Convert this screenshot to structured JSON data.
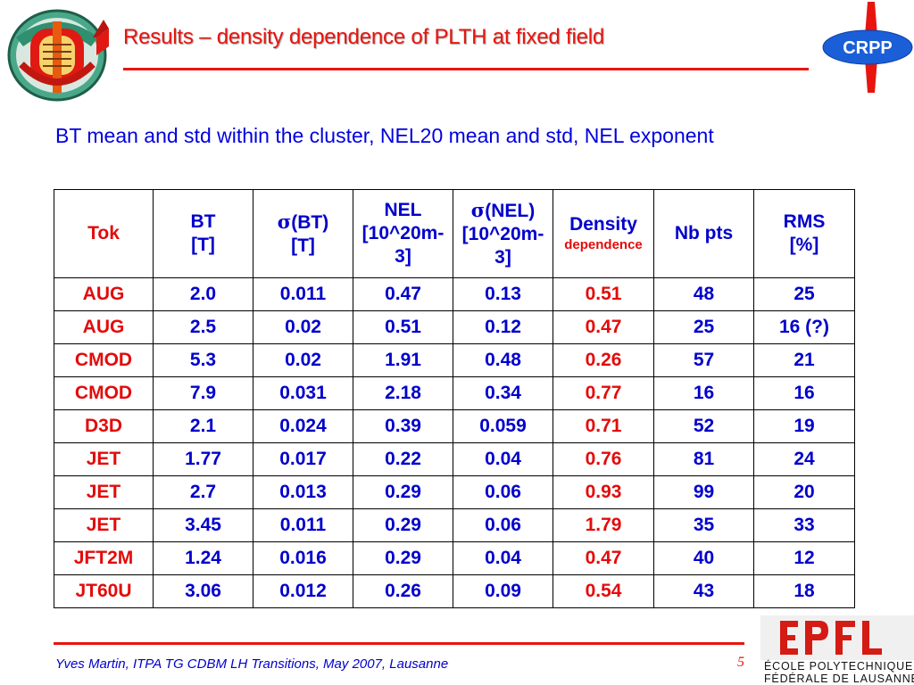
{
  "title": "Results – density dependence of PLTH at fixed field",
  "intro": "BT mean and std within the cluster, NEL20 mean and std, NEL exponent",
  "logo_right_text": "CRPP",
  "epfl": {
    "line1": "ÉCOLE POLYTECHNIQUE",
    "line2": "FÉDÉRALE DE LAUSANNE"
  },
  "table": {
    "headers": {
      "tok": "Tok",
      "bt_1": "BT",
      "bt_2": "[T]",
      "sigma_bt_1": "(BT)",
      "sigma_bt_2": "[T]",
      "nel_1": "NEL",
      "nel_2": "[10^20m-",
      "nel_3": "3]",
      "sigma_nel_1": "(NEL)",
      "sigma_nel_2": "[10^20m-",
      "sigma_nel_3": "3]",
      "density_1": "Density",
      "density_2": "dependence",
      "nbpts": "Nb pts",
      "rms_1": "RMS",
      "rms_2": "[%]",
      "sigma_symbol": "σ"
    },
    "rows": [
      {
        "tok": "AUG",
        "bt": "2.0",
        "sbt": "0.011",
        "nel": "0.47",
        "snel": "0.13",
        "dens": "0.51",
        "nb": "48",
        "rms": "25"
      },
      {
        "tok": "AUG",
        "bt": "2.5",
        "sbt": "0.02",
        "nel": "0.51",
        "snel": "0.12",
        "dens": "0.47",
        "nb": "25",
        "rms": "16 (?)"
      },
      {
        "tok": "CMOD",
        "bt": "5.3",
        "sbt": "0.02",
        "nel": "1.91",
        "snel": "0.48",
        "dens": "0.26",
        "nb": "57",
        "rms": "21"
      },
      {
        "tok": "CMOD",
        "bt": "7.9",
        "sbt": "0.031",
        "nel": "2.18",
        "snel": "0.34",
        "dens": "0.77",
        "nb": "16",
        "rms": "16"
      },
      {
        "tok": "D3D",
        "bt": "2.1",
        "sbt": "0.024",
        "nel": "0.39",
        "snel": "0.059",
        "dens": "0.71",
        "nb": "52",
        "rms": "19"
      },
      {
        "tok": "JET",
        "bt": "1.77",
        "sbt": "0.017",
        "nel": "0.22",
        "snel": "0.04",
        "dens": "0.76",
        "nb": "81",
        "rms": "24"
      },
      {
        "tok": "JET",
        "bt": "2.7",
        "sbt": "0.013",
        "nel": "0.29",
        "snel": "0.06",
        "dens": "0.93",
        "nb": "99",
        "rms": "20"
      },
      {
        "tok": "JET",
        "bt": "3.45",
        "sbt": "0.011",
        "nel": "0.29",
        "snel": "0.06",
        "dens": "1.79",
        "nb": "35",
        "rms": "33"
      },
      {
        "tok": "JFT2M",
        "bt": "1.24",
        "sbt": "0.016",
        "nel": "0.29",
        "snel": "0.04",
        "dens": "0.47",
        "nb": "40",
        "rms": "12"
      },
      {
        "tok": "JT60U",
        "bt": "3.06",
        "sbt": "0.012",
        "nel": "0.26",
        "snel": "0.09",
        "dens": "0.54",
        "nb": "43",
        "rms": "18"
      }
    ]
  },
  "footer": "Yves Martin, ITPA TG CDBM LH Transitions, May 2007, Lausanne",
  "page_number": "5",
  "colors": {
    "title": "#e8150e",
    "text": "#0000cc",
    "accent_red": "#e30b0b"
  }
}
